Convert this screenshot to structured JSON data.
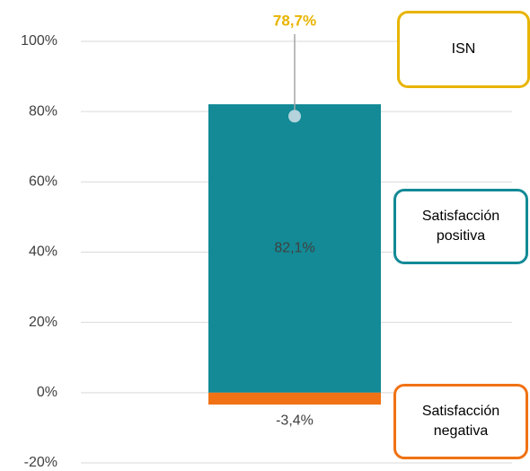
{
  "chart_data": {
    "type": "bar",
    "categories": [
      null
    ],
    "series": [
      {
        "name": "Satisfacción positiva",
        "color": "#138a96",
        "values": [
          82.1
        ],
        "value_labels": [
          "82,1%"
        ]
      },
      {
        "name": "Satisfacción negativa",
        "color": "#f07214",
        "values": [
          -3.4
        ],
        "value_labels": [
          "-3,4%"
        ]
      },
      {
        "name": "ISN",
        "type": "point",
        "color": "#e8b400",
        "values": [
          78.7
        ],
        "value_labels": [
          "78,7%"
        ]
      }
    ],
    "ylim": [
      -20,
      100
    ],
    "yticks": [
      {
        "value": -20,
        "label": "-20%"
      },
      {
        "value": 0,
        "label": "0%"
      },
      {
        "value": 20,
        "label": "20%"
      },
      {
        "value": 40,
        "label": "40%"
      },
      {
        "value": 60,
        "label": "60%"
      },
      {
        "value": 80,
        "label": "80%"
      },
      {
        "value": 100,
        "label": "100%"
      }
    ],
    "grid": true
  }
}
